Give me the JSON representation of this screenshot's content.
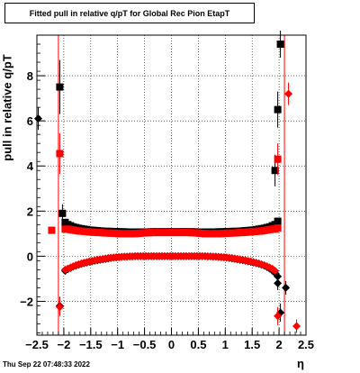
{
  "title": "Fitted pull in relative q/pT for Global Rec Pion EtapT",
  "timestamp": "Thu Sep 22 07:48:33 2022",
  "colors": {
    "series_mean": "#ff0000",
    "series_sigma": "#000000",
    "ref_lines": "#ff0000"
  },
  "chart_data": {
    "type": "scatter",
    "title": "Fitted pull in relative q/pT for Global Rec Pion EtapT",
    "xlabel": "η",
    "ylabel": "pull in relative q/pT",
    "xlim": [
      -2.5,
      2.5
    ],
    "ylim": [
      -3.5,
      9.8
    ],
    "grid": true,
    "x_ticks": [
      -2.5,
      -2,
      -1.5,
      -1,
      -0.5,
      0,
      0.5,
      1,
      1.5,
      2,
      2.5
    ],
    "x_tick_labels": [
      "−2.5",
      "−2",
      "−1.5",
      "−1",
      "−0.5",
      "0",
      "0.5",
      "1",
      "1.5",
      "2",
      "2.5"
    ],
    "y_ticks": [
      -2,
      0,
      2,
      4,
      6,
      8
    ],
    "y_tick_labels": [
      "−2",
      "0",
      "2",
      "4",
      "6",
      "8"
    ],
    "vertical_lines_x": [
      -2.1,
      2.1
    ],
    "series": [
      {
        "marker": "square",
        "color": "#000000",
        "x": [
          -1.975,
          -1.925,
          -1.875,
          -1.825,
          -1.775,
          -1.725,
          -1.675,
          -1.625,
          -1.575,
          -1.525,
          -1.475,
          -1.425,
          -1.375,
          -1.325,
          -1.275,
          -1.225,
          -1.175,
          -1.125,
          -1.075,
          -1.025,
          -0.975,
          -0.925,
          -0.875,
          -0.825,
          -0.775,
          -0.725,
          -0.675,
          -0.625,
          -0.575,
          -0.525,
          -0.475,
          -0.425,
          -0.375,
          -0.325,
          -0.275,
          -0.225,
          -0.175,
          -0.125,
          -0.075,
          -0.025,
          0.025,
          0.075,
          0.125,
          0.175,
          0.225,
          0.275,
          0.325,
          0.375,
          0.425,
          0.475,
          0.525,
          0.575,
          0.625,
          0.675,
          0.725,
          0.775,
          0.825,
          0.875,
          0.925,
          0.975,
          1.025,
          1.075,
          1.125,
          1.175,
          1.225,
          1.275,
          1.325,
          1.375,
          1.425,
          1.475,
          1.525,
          1.575,
          1.625,
          1.675,
          1.725,
          1.775,
          1.825,
          1.875,
          1.925,
          1.975
        ],
        "y": [
          1.5,
          1.4,
          1.35,
          1.3,
          1.27,
          1.24,
          1.22,
          1.2,
          1.18,
          1.16,
          1.15,
          1.14,
          1.13,
          1.12,
          1.11,
          1.1,
          1.1,
          1.1,
          1.09,
          1.09,
          1.08,
          1.08,
          1.08,
          1.07,
          1.07,
          1.07,
          1.07,
          1.07,
          1.07,
          1.07,
          1.07,
          1.07,
          1.08,
          1.08,
          1.08,
          1.08,
          1.08,
          1.08,
          1.08,
          1.08,
          1.08,
          1.08,
          1.08,
          1.08,
          1.08,
          1.08,
          1.08,
          1.08,
          1.08,
          1.07,
          1.07,
          1.07,
          1.07,
          1.07,
          1.07,
          1.07,
          1.07,
          1.08,
          1.08,
          1.08,
          1.09,
          1.09,
          1.1,
          1.1,
          1.1,
          1.11,
          1.12,
          1.13,
          1.14,
          1.15,
          1.16,
          1.18,
          1.2,
          1.22,
          1.24,
          1.27,
          1.3,
          1.35,
          1.4,
          1.55
        ]
      },
      {
        "marker": "square",
        "color": "#ff0000",
        "x": [
          -2.225,
          -1.975,
          -1.925,
          -1.875,
          -1.825,
          -1.775,
          -1.725,
          -1.675,
          -1.625,
          -1.575,
          -1.525,
          -1.475,
          -1.425,
          -1.375,
          -1.325,
          -1.275,
          -1.225,
          -1.175,
          -1.125,
          -1.075,
          -1.025,
          -0.975,
          -0.925,
          -0.875,
          -0.825,
          -0.775,
          -0.725,
          -0.675,
          -0.625,
          -0.575,
          -0.525,
          -0.475,
          -0.425,
          -0.375,
          -0.325,
          -0.275,
          -0.225,
          -0.175,
          -0.125,
          -0.075,
          -0.025,
          0.025,
          0.075,
          0.125,
          0.175,
          0.225,
          0.275,
          0.325,
          0.375,
          0.425,
          0.475,
          0.525,
          0.575,
          0.625,
          0.675,
          0.725,
          0.775,
          0.825,
          0.875,
          0.925,
          0.975,
          1.025,
          1.075,
          1.125,
          1.175,
          1.225,
          1.275,
          1.325,
          1.375,
          1.425,
          1.475,
          1.525,
          1.575,
          1.625,
          1.675,
          1.725,
          1.775,
          1.825,
          1.875,
          1.925,
          1.975
        ],
        "y": [
          1.15,
          1.2,
          1.2,
          1.18,
          1.16,
          1.14,
          1.12,
          1.11,
          1.1,
          1.09,
          1.08,
          1.07,
          1.06,
          1.05,
          1.05,
          1.04,
          1.03,
          1.03,
          1.02,
          1.02,
          1.01,
          1.0,
          1.0,
          1.0,
          1.0,
          1.0,
          1.0,
          1.0,
          1.01,
          1.02,
          1.03,
          1.04,
          1.04,
          1.05,
          1.05,
          1.05,
          1.05,
          1.05,
          1.05,
          1.05,
          1.05,
          1.05,
          1.05,
          1.05,
          1.05,
          1.05,
          1.05,
          1.05,
          1.04,
          1.04,
          1.03,
          1.02,
          1.01,
          1.0,
          1.0,
          1.0,
          1.0,
          1.0,
          1.0,
          1.0,
          1.01,
          1.02,
          1.02,
          1.03,
          1.03,
          1.04,
          1.05,
          1.05,
          1.06,
          1.07,
          1.08,
          1.09,
          1.1,
          1.11,
          1.12,
          1.14,
          1.16,
          1.18,
          1.2,
          1.2,
          1.25
        ]
      },
      {
        "marker": "diamond",
        "color": "#000000",
        "x": [
          -1.975,
          -1.925,
          -1.875,
          -1.825,
          -1.775,
          -1.725,
          -1.675,
          -1.625,
          -1.575,
          -1.525,
          -1.475,
          -1.425,
          -1.375,
          -1.325,
          -1.275,
          -1.225,
          -1.175,
          -1.125,
          -1.075,
          -1.025,
          -0.975,
          -0.925,
          -0.875,
          -0.825,
          -0.775,
          -0.725,
          -0.675,
          -0.625,
          -0.575,
          -0.525,
          -0.475,
          -0.425,
          -0.375,
          -0.325,
          -0.275,
          -0.225,
          -0.175,
          -0.125,
          -0.075,
          -0.025,
          0.025,
          0.075,
          0.125,
          0.175,
          0.225,
          0.275,
          0.325,
          0.375,
          0.425,
          0.475,
          0.525,
          0.575,
          0.625,
          0.675,
          0.725,
          0.775,
          0.825,
          0.875,
          0.925,
          0.975,
          1.025,
          1.075,
          1.125,
          1.175,
          1.225,
          1.275,
          1.325,
          1.375,
          1.425,
          1.475,
          1.525,
          1.575,
          1.625,
          1.675,
          1.725,
          1.775,
          1.825,
          1.875,
          1.925,
          1.975
        ],
        "y": [
          -0.65,
          -0.58,
          -0.52,
          -0.46,
          -0.42,
          -0.38,
          -0.34,
          -0.31,
          -0.28,
          -0.25,
          -0.23,
          -0.2,
          -0.18,
          -0.16,
          -0.14,
          -0.12,
          -0.1,
          -0.08,
          -0.06,
          -0.05,
          -0.04,
          -0.03,
          -0.02,
          -0.02,
          -0.01,
          -0.01,
          0.0,
          0.0,
          0.0,
          0.0,
          0.0,
          0.0,
          0.0,
          0.0,
          0.0,
          0.0,
          0.0,
          0.0,
          0.0,
          0.0,
          0.0,
          0.0,
          0.0,
          0.0,
          0.0,
          0.0,
          0.0,
          0.0,
          0.0,
          0.0,
          0.0,
          0.0,
          0.0,
          -0.01,
          -0.01,
          -0.02,
          -0.02,
          -0.03,
          -0.04,
          -0.05,
          -0.06,
          -0.08,
          -0.1,
          -0.12,
          -0.14,
          -0.16,
          -0.18,
          -0.2,
          -0.23,
          -0.25,
          -0.28,
          -0.31,
          -0.34,
          -0.38,
          -0.42,
          -0.48,
          -0.55,
          -0.64,
          -0.75,
          -0.9
        ]
      },
      {
        "marker": "diamond",
        "color": "#ff0000",
        "x": [
          -1.975,
          -1.925,
          -1.875,
          -1.825,
          -1.775,
          -1.725,
          -1.675,
          -1.625,
          -1.575,
          -1.525,
          -1.475,
          -1.425,
          -1.375,
          -1.325,
          -1.275,
          -1.225,
          -1.175,
          -1.125,
          -1.075,
          -1.025,
          -0.975,
          -0.925,
          -0.875,
          -0.825,
          -0.775,
          -0.725,
          -0.675,
          -0.625,
          -0.575,
          -0.525,
          -0.475,
          -0.425,
          -0.375,
          -0.325,
          -0.275,
          -0.225,
          -0.175,
          -0.125,
          -0.075,
          -0.025,
          0.025,
          0.075,
          0.125,
          0.175,
          0.225,
          0.275,
          0.325,
          0.375,
          0.425,
          0.475,
          0.525,
          0.575,
          0.625,
          0.675,
          0.725,
          0.775,
          0.825,
          0.875,
          0.925,
          0.975,
          1.025,
          1.075,
          1.125,
          1.175,
          1.225,
          1.275,
          1.325,
          1.375,
          1.425,
          1.475,
          1.525,
          1.575,
          1.625,
          1.675,
          1.725,
          1.775,
          1.825,
          1.875,
          1.925
        ],
        "y": [
          -0.6,
          -0.55,
          -0.5,
          -0.45,
          -0.4,
          -0.36,
          -0.32,
          -0.29,
          -0.26,
          -0.23,
          -0.21,
          -0.18,
          -0.16,
          -0.14,
          -0.12,
          -0.1,
          -0.08,
          -0.07,
          -0.06,
          -0.05,
          -0.04,
          -0.03,
          -0.02,
          -0.02,
          -0.01,
          -0.01,
          0.0,
          0.0,
          0.0,
          0.0,
          0.0,
          0.0,
          0.0,
          0.0,
          0.0,
          0.0,
          0.0,
          0.0,
          0.0,
          0.0,
          0.0,
          0.0,
          0.0,
          0.0,
          0.0,
          0.0,
          0.0,
          0.0,
          0.0,
          0.0,
          0.0,
          0.0,
          0.0,
          -0.01,
          -0.01,
          -0.02,
          -0.02,
          -0.03,
          -0.04,
          -0.05,
          -0.06,
          -0.07,
          -0.08,
          -0.1,
          -0.12,
          -0.14,
          -0.16,
          -0.18,
          -0.21,
          -0.23,
          -0.26,
          -0.29,
          -0.32,
          -0.36,
          -0.4,
          -0.45,
          -0.5,
          -0.56,
          -0.65
        ]
      },
      {
        "marker": "square",
        "color": "#000000",
        "errors": true,
        "x": [
          -2.075,
          -2.025,
          1.925,
          1.975,
          2.025
        ],
        "y": [
          7.5,
          1.9,
          3.8,
          6.5,
          9.4
        ],
        "err": [
          1.2,
          0.4,
          0.7,
          0.8,
          0.6
        ]
      },
      {
        "marker": "square",
        "color": "#ff0000",
        "errors": true,
        "x": [
          -2.075,
          1.975
        ],
        "y": [
          4.55,
          4.3
        ],
        "err": [
          0.9,
          0.7
        ]
      },
      {
        "marker": "diamond",
        "color": "#000000",
        "errors": true,
        "x": [
          -2.475,
          -2.075,
          1.975,
          2.025,
          2.125
        ],
        "y": [
          6.1,
          -2.2,
          -1.2,
          -2.5,
          -1.4
        ],
        "err": [
          0.5,
          0.4,
          0.3,
          0.4,
          0.3
        ]
      },
      {
        "marker": "diamond",
        "color": "#ff0000",
        "errors": true,
        "x": [
          -2.075,
          1.975,
          2.175,
          2.325
        ],
        "y": [
          -2.25,
          -2.65,
          7.2,
          -3.1
        ],
        "err": [
          0.4,
          0.4,
          0.5,
          0.3
        ]
      }
    ]
  }
}
